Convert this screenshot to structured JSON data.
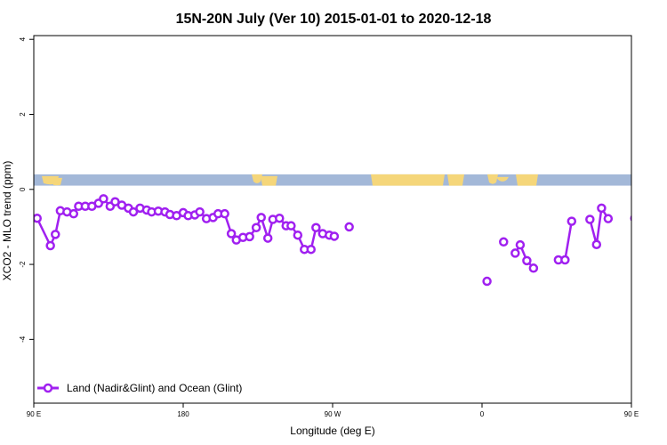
{
  "chart_data": {
    "type": "line",
    "title": "15N-20N July (Ver 10)   2015-01-01 to 2020-12-18",
    "xlabel": "Longitude (deg E)",
    "ylabel": "XCO2 - MLO trend (ppm)",
    "xlim": [
      90,
      450
    ],
    "ylim": [
      -5.7,
      4.1
    ],
    "x_ticks": [
      {
        "value": 90,
        "label": "90 E"
      },
      {
        "value": 180,
        "label": "180"
      },
      {
        "value": 270,
        "label": "90 W"
      },
      {
        "value": 360,
        "label": "0"
      },
      {
        "value": 450,
        "label": "90 E"
      },
      {
        "value": 540,
        "label": "180"
      }
    ],
    "y_ticks": [
      {
        "value": -4,
        "label": "-4"
      },
      {
        "value": -2,
        "label": "-2"
      },
      {
        "value": 0,
        "label": "0"
      },
      {
        "value": 2,
        "label": "2"
      },
      {
        "value": 4,
        "label": "4"
      }
    ],
    "grid": false,
    "legend_position": "bottom-left",
    "map_strip": {
      "y_range": [
        0.1,
        0.4
      ],
      "ocean_color": "#a3b8d8",
      "land_color": "#f5d67a"
    },
    "series": [
      {
        "name": "Land (Nadir&Glint) and Ocean (Glint)",
        "color": "#a020f0",
        "segments": [
          [
            [
              92,
              -0.77
            ],
            [
              100,
              -1.5
            ],
            [
              103,
              -1.2
            ],
            [
              106,
              -0.57
            ],
            [
              110,
              -0.6
            ],
            [
              114,
              -0.65
            ],
            [
              117,
              -0.45
            ],
            [
              121,
              -0.45
            ],
            [
              125,
              -0.45
            ],
            [
              129,
              -0.37
            ],
            [
              132,
              -0.25
            ],
            [
              136,
              -0.45
            ],
            [
              139,
              -0.33
            ],
            [
              143,
              -0.42
            ],
            [
              147,
              -0.5
            ],
            [
              150,
              -0.6
            ],
            [
              154,
              -0.5
            ],
            [
              158,
              -0.55
            ],
            [
              161,
              -0.6
            ],
            [
              165,
              -0.58
            ],
            [
              169,
              -0.6
            ],
            [
              172,
              -0.67
            ],
            [
              176,
              -0.7
            ],
            [
              180,
              -0.62
            ],
            [
              183,
              -0.7
            ],
            [
              187,
              -0.68
            ],
            [
              190,
              -0.6
            ],
            [
              194,
              -0.78
            ],
            [
              198,
              -0.75
            ],
            [
              201,
              -0.65
            ],
            [
              205,
              -0.65
            ],
            [
              209,
              -1.18
            ],
            [
              212,
              -1.35
            ],
            [
              216,
              -1.28
            ],
            [
              220,
              -1.26
            ],
            [
              224,
              -1.02
            ],
            [
              227,
              -0.75
            ],
            [
              231,
              -1.3
            ],
            [
              234,
              -0.8
            ],
            [
              238,
              -0.77
            ],
            [
              242,
              -0.97
            ],
            [
              245,
              -0.97
            ],
            [
              249,
              -1.22
            ],
            [
              253,
              -1.6
            ],
            [
              257,
              -1.6
            ],
            [
              260,
              -1.02
            ],
            [
              264,
              -1.18
            ],
            [
              268,
              -1.22
            ],
            [
              271,
              -1.25
            ]
          ],
          [
            [
              280,
              -1.0
            ]
          ],
          [
            [
              363,
              -2.45
            ]
          ],
          [
            [
              373,
              -1.4
            ]
          ],
          [
            [
              380,
              -1.7
            ],
            [
              383,
              -1.48
            ],
            [
              387,
              -1.9
            ],
            [
              391,
              -2.1
            ]
          ],
          [
            [
              406,
              -1.88
            ],
            [
              410,
              -1.88
            ],
            [
              414,
              -0.85
            ]
          ],
          [
            [
              425,
              -0.8
            ],
            [
              429,
              -1.47
            ],
            [
              432,
              -0.5
            ],
            [
              436,
              -0.78
            ]
          ]
        ]
      }
    ]
  }
}
